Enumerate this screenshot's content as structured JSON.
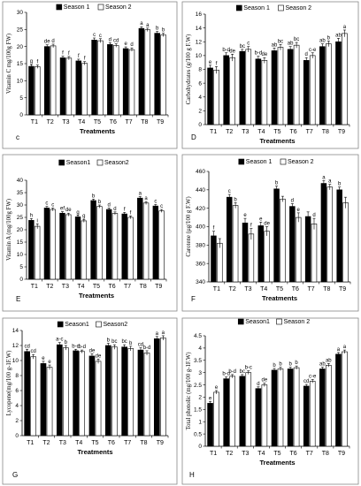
{
  "chart_data": [
    {
      "type": "bar",
      "panel_label": "c",
      "categories": [
        "T1",
        "T2",
        "T3",
        "T4",
        "T5",
        "T6",
        "T7",
        "T8",
        "T9"
      ],
      "series": [
        {
          "name": "Season 1",
          "values": [
            14.2,
            20.0,
            16.7,
            15.8,
            21.9,
            20.6,
            19.4,
            25.3,
            23.9
          ],
          "errors": [
            0.5,
            0.5,
            0.5,
            0.5,
            0.6,
            0.5,
            0.5,
            0.5,
            0.5
          ],
          "letters": [
            "g",
            "de",
            "f",
            "f",
            "c",
            "d",
            "e",
            "a",
            "b"
          ]
        },
        {
          "name": "Season 2",
          "values": [
            14.1,
            20.2,
            16.6,
            15.1,
            21.7,
            20.3,
            19.1,
            24.9,
            23.4
          ],
          "errors": [
            0.5,
            0.5,
            0.5,
            0.5,
            0.6,
            0.5,
            0.5,
            0.5,
            0.5
          ],
          "letters": [
            "f",
            "d",
            "f",
            "f",
            "c",
            "cd",
            "d",
            "a",
            "b"
          ]
        }
      ],
      "ylabel": "Vitamin C mg/100g FW)",
      "xlabel": "Treatments",
      "ylim": [
        0,
        30
      ],
      "yticks": [
        0,
        5,
        10,
        15,
        20,
        25,
        30
      ],
      "legend": "top"
    },
    {
      "type": "bar",
      "panel_label": "D",
      "categories": [
        "T1",
        "T2",
        "T3",
        "T4",
        "T5",
        "T6",
        "T7",
        "T8",
        "T9"
      ],
      "series": [
        {
          "name": "Season 1",
          "values": [
            8.2,
            10.0,
            10.6,
            9.5,
            10.7,
            10.9,
            9.3,
            11.3,
            12.0
          ],
          "errors": [
            0.4,
            0.4,
            0.3,
            0.4,
            0.4,
            0.4,
            0.4,
            0.4,
            0.5
          ],
          "letters": [
            "e",
            "b-d",
            "bc",
            "b-d",
            "ab",
            "ab",
            "d",
            "ab",
            "ab"
          ]
        },
        {
          "name": "Season 2",
          "values": [
            7.9,
            9.7,
            10.9,
            9.3,
            11.2,
            11.5,
            10.0,
            11.7,
            13.2
          ],
          "errors": [
            0.5,
            0.5,
            0.4,
            0.4,
            0.4,
            0.4,
            0.4,
            0.4,
            0.5
          ],
          "letters": [
            "f",
            "de",
            "c",
            "de",
            "bc",
            "bc",
            "c-e",
            "b",
            "a"
          ]
        }
      ],
      "ylabel": "Carbohydrates (g/100 g F.W)",
      "xlabel": "Treatments",
      "ylim": [
        0,
        16
      ],
      "yticks": [
        0,
        2,
        4,
        6,
        8,
        10,
        12,
        14,
        16
      ],
      "legend": "top"
    },
    {
      "type": "bar",
      "panel_label": "E",
      "categories": [
        "T1",
        "T2",
        "T3",
        "T4",
        "T5",
        "T6",
        "T7",
        "T8",
        "T9"
      ],
      "series": [
        {
          "name": "Season1",
          "values": [
            23.8,
            28.8,
            26.7,
            25.2,
            31.8,
            28.2,
            26.4,
            32.8,
            29.6
          ],
          "errors": [
            0.7,
            0.6,
            0.6,
            0.6,
            0.6,
            0.6,
            0.6,
            0.6,
            0.6
          ],
          "letters": [
            "h",
            "c",
            "ef",
            "g",
            "b",
            "d",
            "f",
            "a",
            "c"
          ]
        },
        {
          "name": "Season2",
          "values": [
            21.4,
            28.2,
            26.1,
            23.6,
            29.4,
            26.6,
            25.0,
            30.8,
            27.6
          ],
          "errors": [
            1.0,
            0.6,
            0.6,
            0.6,
            0.6,
            0.6,
            0.6,
            0.6,
            0.6
          ],
          "letters": [
            "i",
            "c",
            "de",
            "g",
            "b",
            "d",
            "f",
            "a",
            "c"
          ]
        }
      ],
      "ylabel": "Vitamin A (mg/100g FW)",
      "xlabel": "Treatments",
      "ylim": [
        0,
        40
      ],
      "yticks": [
        0,
        5,
        10,
        15,
        20,
        25,
        30,
        35,
        40
      ],
      "legend": "top"
    },
    {
      "type": "bar",
      "panel_label": "F",
      "categories": [
        "T1",
        "T2",
        "T3",
        "T4",
        "T5",
        "T6",
        "T7",
        "T8",
        "T9"
      ],
      "series": [
        {
          "name": "Season 1",
          "values": [
            390,
            432,
            404,
            401,
            441,
            422,
            411,
            447,
            440
          ],
          "errors": [
            5,
            3,
            5,
            4,
            3,
            3,
            5,
            3,
            3
          ],
          "letters": [
            "f",
            "c",
            "e",
            "e",
            "b",
            "d",
            "",
            "a",
            "b"
          ]
        },
        {
          "name": "Season 2",
          "values": [
            382,
            423,
            392,
            395,
            430,
            410,
            403,
            443,
            426
          ],
          "errors": [
            5,
            3,
            6,
            5,
            3,
            5,
            6,
            3,
            6
          ],
          "letters": [
            "",
            "b",
            "f",
            "de",
            "",
            "e",
            "d",
            "a",
            ""
          ]
        }
      ],
      "ylabel": "Carotene (µg/100 g F.W)",
      "xlabel": "Treatments",
      "ylim": [
        340,
        460
      ],
      "yticks": [
        340,
        360,
        380,
        400,
        420,
        440,
        460
      ],
      "legend": "top"
    },
    {
      "type": "bar",
      "panel_label": "G",
      "categories": [
        "T1",
        "T2",
        "T3",
        "T4",
        "T5",
        "T6",
        "T7",
        "T8",
        "T9"
      ],
      "series": [
        {
          "name": "Season1",
          "values": [
            11.2,
            9.6,
            12.1,
            11.3,
            10.6,
            12.0,
            11.8,
            11.4,
            12.9
          ],
          "errors": [
            0.3,
            0.3,
            0.3,
            0.2,
            0.3,
            0.3,
            0.3,
            0.3,
            0.3
          ],
          "letters": [
            "cd",
            "e",
            "a-c",
            "b-d",
            "de",
            "b",
            "bc",
            "cd",
            "a"
          ]
        },
        {
          "name": "Season2",
          "values": [
            10.5,
            9.1,
            11.7,
            11.2,
            9.9,
            11.8,
            11.6,
            11.0,
            13.0
          ],
          "errors": [
            0.3,
            0.3,
            0.3,
            0.2,
            0.3,
            0.3,
            0.3,
            0.3,
            0.3
          ],
          "letters": [
            "cd",
            "e",
            "b",
            "b-d",
            "de",
            "bc",
            "b",
            "b-d",
            "a"
          ]
        }
      ],
      "ylabel": "Lycopene(mg/100 g-1F.W)",
      "xlabel": "Treatments",
      "ylim": [
        0,
        14
      ],
      "yticks": [
        0,
        2,
        4,
        6,
        8,
        10,
        12,
        14
      ],
      "legend": "top"
    },
    {
      "type": "bar",
      "panel_label": "H",
      "categories": [
        "T1",
        "T2",
        "T3",
        "T4",
        "T5",
        "T6",
        "T7",
        "T8",
        "T9"
      ],
      "series": [
        {
          "name": "Season1",
          "values": [
            1.75,
            2.75,
            2.85,
            2.35,
            3.1,
            3.15,
            2.45,
            3.15,
            3.75
          ],
          "errors": [
            0.07,
            0.07,
            0.07,
            0.07,
            0.07,
            0.07,
            0.07,
            0.07,
            0.07
          ],
          "letters": [
            "e",
            "b-d",
            "bc",
            "d",
            "b",
            "b",
            "cd",
            "ab",
            "a"
          ]
        },
        {
          "name": "Season 2",
          "values": [
            2.2,
            2.85,
            3.0,
            2.5,
            3.15,
            3.2,
            2.65,
            3.3,
            3.85
          ],
          "errors": [
            0.07,
            0.07,
            0.07,
            0.07,
            0.07,
            0.07,
            0.07,
            0.07,
            0.07
          ],
          "letters": [
            "e",
            "b-d",
            "b-c",
            "de",
            "b",
            "b",
            "c-e",
            "ab",
            "a"
          ]
        }
      ],
      "ylabel": "Total phenolic (mg/100 g-1F.W)",
      "xlabel": "Treatments",
      "ylim": [
        0,
        4.5
      ],
      "yticks": [
        0,
        0.5,
        1,
        1.5,
        2,
        2.5,
        3,
        3.5,
        4,
        4.5
      ],
      "legend": "top"
    }
  ],
  "colors": {
    "season1": "#000000",
    "season2": "#ffffff",
    "frame": "#888888"
  }
}
